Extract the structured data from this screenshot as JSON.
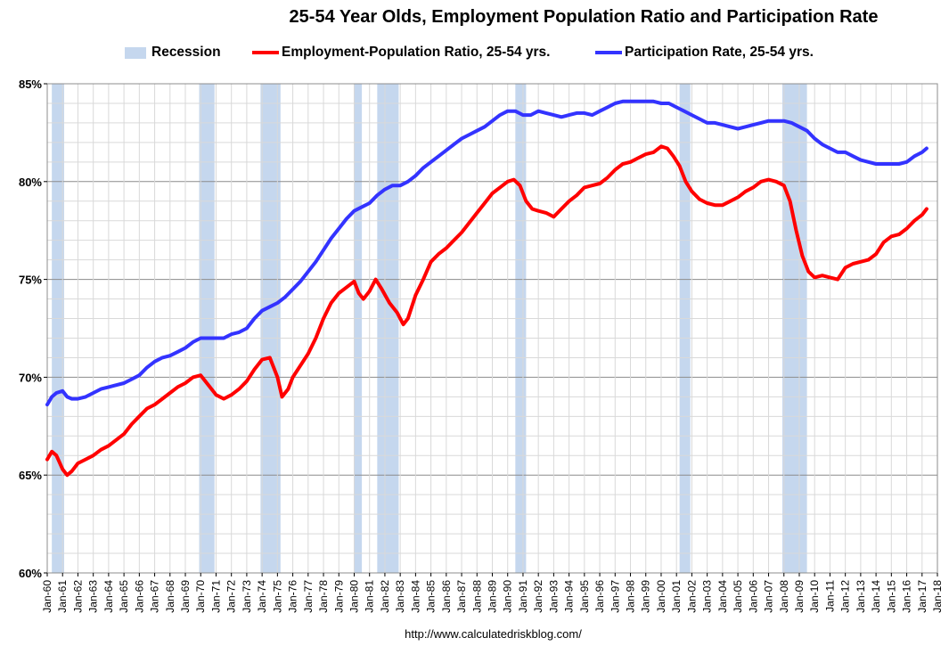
{
  "chart_data": {
    "type": "line",
    "title": "25-54 Year Olds, Employment Population Ratio and Participation Rate",
    "ylim": [
      60,
      85
    ],
    "yticks": [
      "60%",
      "65%",
      "70%",
      "75%",
      "80%",
      "85%"
    ],
    "xlim": [
      1960.0,
      2018.0
    ],
    "xtick_labels": [
      "Jan-60",
      "Jan-61",
      "Jan-62",
      "Jan-63",
      "Jan-64",
      "Jan-65",
      "Jan-66",
      "Jan-67",
      "Jan-68",
      "Jan-69",
      "Jan-70",
      "Jan-71",
      "Jan-72",
      "Jan-73",
      "Jan-74",
      "Jan-75",
      "Jan-76",
      "Jan-77",
      "Jan-78",
      "Jan-79",
      "Jan-80",
      "Jan-81",
      "Jan-82",
      "Jan-83",
      "Jan-84",
      "Jan-85",
      "Jan-86",
      "Jan-87",
      "Jan-88",
      "Jan-89",
      "Jan-90",
      "Jan-91",
      "Jan-92",
      "Jan-93",
      "Jan-94",
      "Jan-95",
      "Jan-96",
      "Jan-97",
      "Jan-98",
      "Jan-99",
      "Jan-00",
      "Jan-01",
      "Jan-02",
      "Jan-03",
      "Jan-04",
      "Jan-05",
      "Jan-06",
      "Jan-07",
      "Jan-08",
      "Jan-09",
      "Jan-10",
      "Jan-11",
      "Jan-12",
      "Jan-13",
      "Jan-14",
      "Jan-15",
      "Jan-16",
      "Jan-17",
      "Jan-18"
    ],
    "grid": true,
    "legend": "top-center",
    "recessions": [
      {
        "start": 1960.3,
        "end": 1961.1
      },
      {
        "start": 1969.9,
        "end": 1970.9
      },
      {
        "start": 1973.9,
        "end": 1975.2
      },
      {
        "start": 1980.0,
        "end": 1980.5
      },
      {
        "start": 1981.5,
        "end": 1982.9
      },
      {
        "start": 1990.5,
        "end": 1991.2
      },
      {
        "start": 2001.2,
        "end": 2001.9
      },
      {
        "start": 2007.9,
        "end": 2009.5
      }
    ],
    "series": [
      {
        "name": "Employment-Population Ratio, 25-54 yrs.",
        "color": "#ff0000",
        "points": [
          [
            1960.0,
            65.8
          ],
          [
            1960.3,
            66.2
          ],
          [
            1960.6,
            66.0
          ],
          [
            1961.0,
            65.3
          ],
          [
            1961.3,
            65.0
          ],
          [
            1961.6,
            65.2
          ],
          [
            1962.0,
            65.6
          ],
          [
            1962.5,
            65.8
          ],
          [
            1963.0,
            66.0
          ],
          [
            1963.5,
            66.3
          ],
          [
            1964.0,
            66.5
          ],
          [
            1964.5,
            66.8
          ],
          [
            1965.0,
            67.1
          ],
          [
            1965.5,
            67.6
          ],
          [
            1966.0,
            68.0
          ],
          [
            1966.5,
            68.4
          ],
          [
            1967.0,
            68.6
          ],
          [
            1967.5,
            68.9
          ],
          [
            1968.0,
            69.2
          ],
          [
            1968.5,
            69.5
          ],
          [
            1969.0,
            69.7
          ],
          [
            1969.5,
            70.0
          ],
          [
            1970.0,
            70.1
          ],
          [
            1970.5,
            69.6
          ],
          [
            1971.0,
            69.1
          ],
          [
            1971.5,
            68.9
          ],
          [
            1972.0,
            69.1
          ],
          [
            1972.5,
            69.4
          ],
          [
            1973.0,
            69.8
          ],
          [
            1973.5,
            70.4
          ],
          [
            1974.0,
            70.9
          ],
          [
            1974.5,
            71.0
          ],
          [
            1975.0,
            70.0
          ],
          [
            1975.3,
            69.0
          ],
          [
            1975.7,
            69.4
          ],
          [
            1976.0,
            70.0
          ],
          [
            1976.5,
            70.6
          ],
          [
            1977.0,
            71.2
          ],
          [
            1977.5,
            72.0
          ],
          [
            1978.0,
            73.0
          ],
          [
            1978.5,
            73.8
          ],
          [
            1979.0,
            74.3
          ],
          [
            1979.5,
            74.6
          ],
          [
            1980.0,
            74.9
          ],
          [
            1980.3,
            74.3
          ],
          [
            1980.6,
            74.0
          ],
          [
            1981.0,
            74.4
          ],
          [
            1981.4,
            75.0
          ],
          [
            1981.8,
            74.5
          ],
          [
            1982.3,
            73.8
          ],
          [
            1982.8,
            73.3
          ],
          [
            1983.2,
            72.7
          ],
          [
            1983.5,
            73.0
          ],
          [
            1984.0,
            74.2
          ],
          [
            1984.5,
            75.0
          ],
          [
            1985.0,
            75.9
          ],
          [
            1985.5,
            76.3
          ],
          [
            1986.0,
            76.6
          ],
          [
            1986.5,
            77.0
          ],
          [
            1987.0,
            77.4
          ],
          [
            1987.5,
            77.9
          ],
          [
            1988.0,
            78.4
          ],
          [
            1988.5,
            78.9
          ],
          [
            1989.0,
            79.4
          ],
          [
            1989.5,
            79.7
          ],
          [
            1990.0,
            80.0
          ],
          [
            1990.4,
            80.1
          ],
          [
            1990.8,
            79.8
          ],
          [
            1991.2,
            79.0
          ],
          [
            1991.6,
            78.6
          ],
          [
            1992.0,
            78.5
          ],
          [
            1992.5,
            78.4
          ],
          [
            1993.0,
            78.2
          ],
          [
            1993.5,
            78.6
          ],
          [
            1994.0,
            79.0
          ],
          [
            1994.5,
            79.3
          ],
          [
            1995.0,
            79.7
          ],
          [
            1995.5,
            79.8
          ],
          [
            1996.0,
            79.9
          ],
          [
            1996.5,
            80.2
          ],
          [
            1997.0,
            80.6
          ],
          [
            1997.5,
            80.9
          ],
          [
            1998.0,
            81.0
          ],
          [
            1998.5,
            81.2
          ],
          [
            1999.0,
            81.4
          ],
          [
            1999.5,
            81.5
          ],
          [
            2000.0,
            81.8
          ],
          [
            2000.4,
            81.7
          ],
          [
            2000.8,
            81.3
          ],
          [
            2001.2,
            80.8
          ],
          [
            2001.6,
            80.0
          ],
          [
            2002.0,
            79.5
          ],
          [
            2002.5,
            79.1
          ],
          [
            2003.0,
            78.9
          ],
          [
            2003.5,
            78.8
          ],
          [
            2004.0,
            78.8
          ],
          [
            2004.5,
            79.0
          ],
          [
            2005.0,
            79.2
          ],
          [
            2005.5,
            79.5
          ],
          [
            2006.0,
            79.7
          ],
          [
            2006.5,
            80.0
          ],
          [
            2007.0,
            80.1
          ],
          [
            2007.5,
            80.0
          ],
          [
            2008.0,
            79.8
          ],
          [
            2008.4,
            79.0
          ],
          [
            2008.8,
            77.5
          ],
          [
            2009.2,
            76.2
          ],
          [
            2009.6,
            75.4
          ],
          [
            2010.0,
            75.1
          ],
          [
            2010.5,
            75.2
          ],
          [
            2011.0,
            75.1
          ],
          [
            2011.5,
            75.0
          ],
          [
            2012.0,
            75.6
          ],
          [
            2012.5,
            75.8
          ],
          [
            2013.0,
            75.9
          ],
          [
            2013.5,
            76.0
          ],
          [
            2014.0,
            76.3
          ],
          [
            2014.5,
            76.9
          ],
          [
            2015.0,
            77.2
          ],
          [
            2015.5,
            77.3
          ],
          [
            2016.0,
            77.6
          ],
          [
            2016.5,
            78.0
          ],
          [
            2017.0,
            78.3
          ],
          [
            2017.3,
            78.6
          ]
        ]
      },
      {
        "name": "Participation Rate, 25-54 yrs.",
        "color": "#3333ff",
        "points": [
          [
            1960.0,
            68.6
          ],
          [
            1960.3,
            69.0
          ],
          [
            1960.6,
            69.2
          ],
          [
            1961.0,
            69.3
          ],
          [
            1961.3,
            69.0
          ],
          [
            1961.6,
            68.9
          ],
          [
            1962.0,
            68.9
          ],
          [
            1962.5,
            69.0
          ],
          [
            1963.0,
            69.2
          ],
          [
            1963.5,
            69.4
          ],
          [
            1964.0,
            69.5
          ],
          [
            1964.5,
            69.6
          ],
          [
            1965.0,
            69.7
          ],
          [
            1965.5,
            69.9
          ],
          [
            1966.0,
            70.1
          ],
          [
            1966.5,
            70.5
          ],
          [
            1967.0,
            70.8
          ],
          [
            1967.5,
            71.0
          ],
          [
            1968.0,
            71.1
          ],
          [
            1968.5,
            71.3
          ],
          [
            1969.0,
            71.5
          ],
          [
            1969.5,
            71.8
          ],
          [
            1970.0,
            72.0
          ],
          [
            1970.5,
            72.0
          ],
          [
            1971.0,
            72.0
          ],
          [
            1971.5,
            72.0
          ],
          [
            1972.0,
            72.2
          ],
          [
            1972.5,
            72.3
          ],
          [
            1973.0,
            72.5
          ],
          [
            1973.5,
            73.0
          ],
          [
            1974.0,
            73.4
          ],
          [
            1974.5,
            73.6
          ],
          [
            1975.0,
            73.8
          ],
          [
            1975.5,
            74.1
          ],
          [
            1976.0,
            74.5
          ],
          [
            1976.5,
            74.9
          ],
          [
            1977.0,
            75.4
          ],
          [
            1977.5,
            75.9
          ],
          [
            1978.0,
            76.5
          ],
          [
            1978.5,
            77.1
          ],
          [
            1979.0,
            77.6
          ],
          [
            1979.5,
            78.1
          ],
          [
            1980.0,
            78.5
          ],
          [
            1980.5,
            78.7
          ],
          [
            1981.0,
            78.9
          ],
          [
            1981.5,
            79.3
          ],
          [
            1982.0,
            79.6
          ],
          [
            1982.5,
            79.8
          ],
          [
            1983.0,
            79.8
          ],
          [
            1983.5,
            80.0
          ],
          [
            1984.0,
            80.3
          ],
          [
            1984.5,
            80.7
          ],
          [
            1985.0,
            81.0
          ],
          [
            1985.5,
            81.3
          ],
          [
            1986.0,
            81.6
          ],
          [
            1986.5,
            81.9
          ],
          [
            1987.0,
            82.2
          ],
          [
            1987.5,
            82.4
          ],
          [
            1988.0,
            82.6
          ],
          [
            1988.5,
            82.8
          ],
          [
            1989.0,
            83.1
          ],
          [
            1989.5,
            83.4
          ],
          [
            1990.0,
            83.6
          ],
          [
            1990.5,
            83.6
          ],
          [
            1991.0,
            83.4
          ],
          [
            1991.5,
            83.4
          ],
          [
            1992.0,
            83.6
          ],
          [
            1992.5,
            83.5
          ],
          [
            1993.0,
            83.4
          ],
          [
            1993.5,
            83.3
          ],
          [
            1994.0,
            83.4
          ],
          [
            1994.5,
            83.5
          ],
          [
            1995.0,
            83.5
          ],
          [
            1995.5,
            83.4
          ],
          [
            1996.0,
            83.6
          ],
          [
            1996.5,
            83.8
          ],
          [
            1997.0,
            84.0
          ],
          [
            1997.5,
            84.1
          ],
          [
            1998.0,
            84.1
          ],
          [
            1998.5,
            84.1
          ],
          [
            1999.0,
            84.1
          ],
          [
            1999.5,
            84.1
          ],
          [
            2000.0,
            84.0
          ],
          [
            2000.5,
            84.0
          ],
          [
            2001.0,
            83.8
          ],
          [
            2001.5,
            83.6
          ],
          [
            2002.0,
            83.4
          ],
          [
            2002.5,
            83.2
          ],
          [
            2003.0,
            83.0
          ],
          [
            2003.5,
            83.0
          ],
          [
            2004.0,
            82.9
          ],
          [
            2004.5,
            82.8
          ],
          [
            2005.0,
            82.7
          ],
          [
            2005.5,
            82.8
          ],
          [
            2006.0,
            82.9
          ],
          [
            2006.5,
            83.0
          ],
          [
            2007.0,
            83.1
          ],
          [
            2007.5,
            83.1
          ],
          [
            2008.0,
            83.1
          ],
          [
            2008.5,
            83.0
          ],
          [
            2009.0,
            82.8
          ],
          [
            2009.5,
            82.6
          ],
          [
            2010.0,
            82.2
          ],
          [
            2010.5,
            81.9
          ],
          [
            2011.0,
            81.7
          ],
          [
            2011.5,
            81.5
          ],
          [
            2012.0,
            81.5
          ],
          [
            2012.5,
            81.3
          ],
          [
            2013.0,
            81.1
          ],
          [
            2013.5,
            81.0
          ],
          [
            2014.0,
            80.9
          ],
          [
            2014.5,
            80.9
          ],
          [
            2015.0,
            80.9
          ],
          [
            2015.5,
            80.9
          ],
          [
            2016.0,
            81.0
          ],
          [
            2016.5,
            81.3
          ],
          [
            2017.0,
            81.5
          ],
          [
            2017.3,
            81.7
          ]
        ]
      }
    ],
    "legend_entries": [
      {
        "label": "Recession",
        "color": "#c5d7ee"
      },
      {
        "label": "Employment-Population Ratio, 25-54 yrs.",
        "color": "#ff0000"
      },
      {
        "label": "Participation Rate, 25-54 yrs.",
        "color": "#3333ff"
      }
    ],
    "source": "http://www.calculatedriskblog.com/"
  }
}
